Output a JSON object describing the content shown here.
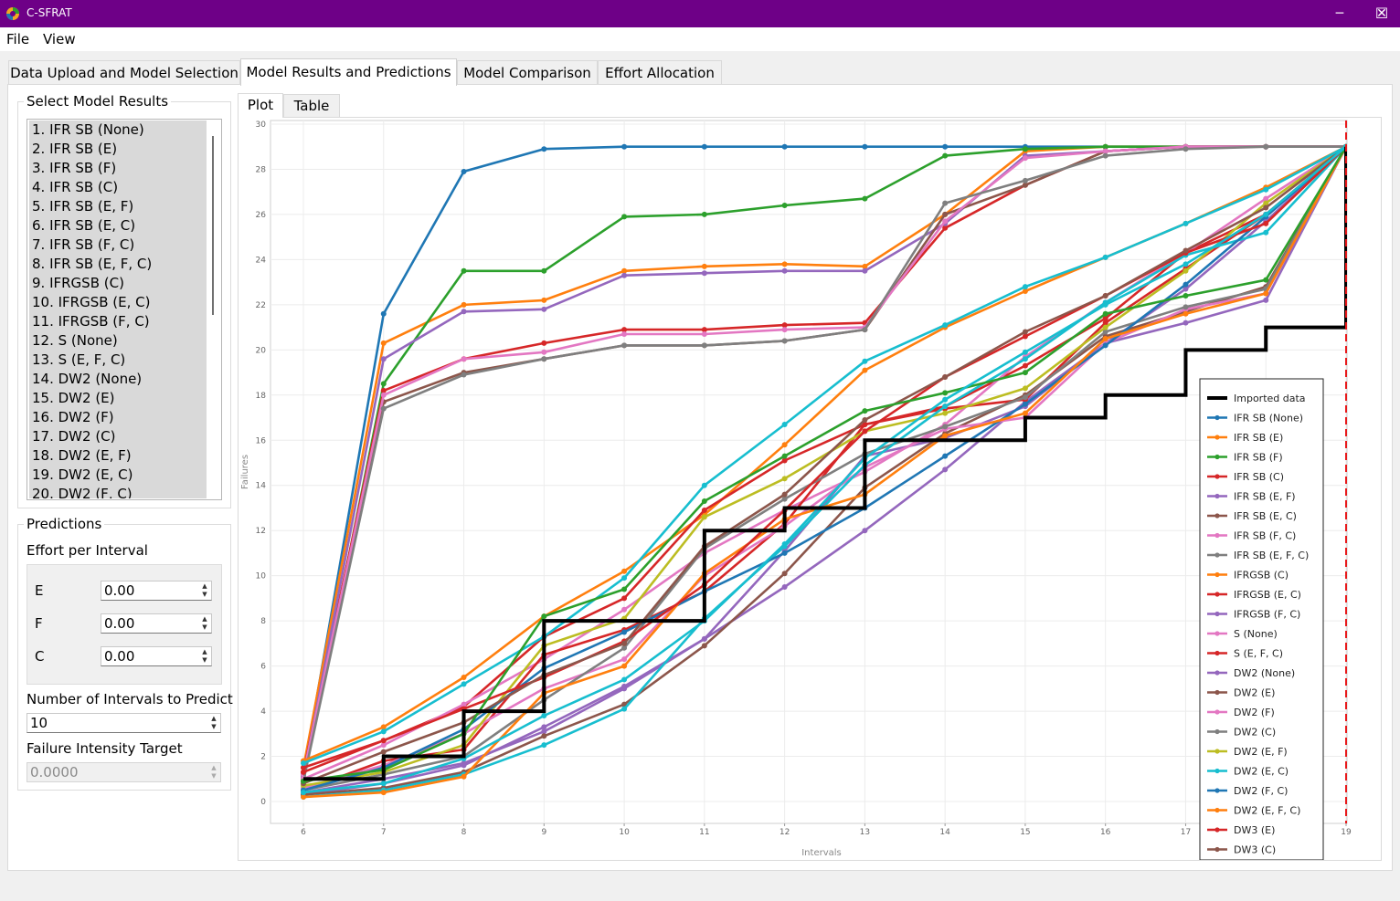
{
  "window": {
    "title": "C-SFRAT",
    "icon": "app-logo-icon",
    "min": "─",
    "max": "☐",
    "close": "✕"
  },
  "menu": [
    "File",
    "View"
  ],
  "tabs": [
    "Data Upload and Model Selection",
    "Model Results and Predictions",
    "Model Comparison",
    "Effort Allocation"
  ],
  "select_model_results": {
    "title": "Select Model Results",
    "items": [
      "1. IFR SB (None)",
      "2. IFR SB (E)",
      "3. IFR SB (F)",
      "4. IFR SB (C)",
      "5. IFR SB (E, F)",
      "6. IFR SB (E, C)",
      "7. IFR SB (F, C)",
      "8. IFR SB (E, F, C)",
      "9. IFRGSB (C)",
      "10. IFRGSB (E, C)",
      "11. IFRGSB (F, C)",
      "12. S (None)",
      "13. S (E, F, C)",
      "14. DW2 (None)",
      "15. DW2 (E)",
      "16. DW2 (F)",
      "17. DW2 (C)",
      "18. DW2 (E, F)",
      "19. DW2 (E, C)",
      "20. DW2 (F, C)"
    ]
  },
  "predictions": {
    "title": "Predictions",
    "effort_label": "Effort per Interval",
    "effort": [
      {
        "label": "E",
        "value": "0.00"
      },
      {
        "label": "F",
        "value": "0.00"
      },
      {
        "label": "C",
        "value": "0.00"
      }
    ],
    "intervals_label": "Number of Intervals to Predict",
    "intervals_value": "10",
    "fi_label": "Failure Intensity Target",
    "fi_value": "0.0000"
  },
  "plot_tabs": [
    "Plot",
    "Table"
  ],
  "chart_data": {
    "type": "line",
    "xlabel": "Intervals",
    "ylabel": "Failures",
    "xlim": [
      6,
      19
    ],
    "ylim": [
      0,
      30
    ],
    "xticks": [
      6,
      7,
      8,
      9,
      10,
      11,
      12,
      13,
      14,
      15,
      16,
      17,
      18,
      19
    ],
    "yticks": [
      0,
      2,
      4,
      6,
      8,
      10,
      12,
      14,
      16,
      18,
      20,
      22,
      24,
      26,
      28,
      30
    ],
    "grid": true,
    "legend_position": "bottom-right",
    "vline": 19,
    "imported": {
      "name": "Imported data",
      "color": "#000000",
      "x": [
        6,
        7,
        8,
        9,
        10,
        11,
        12,
        13,
        14,
        15,
        16,
        17,
        18,
        19
      ],
      "y": [
        1,
        2,
        4,
        8,
        8,
        12,
        13,
        16,
        16,
        17,
        18,
        20,
        21,
        29
      ]
    },
    "series": [
      {
        "name": "IFR SB (None)",
        "color": "#1f77b4",
        "x": [
          6,
          7,
          8,
          9,
          10,
          11,
          12,
          13,
          14,
          15,
          16,
          17,
          18,
          19
        ],
        "y": [
          1.2,
          21.6,
          27.9,
          28.9,
          29,
          29,
          29,
          29,
          29,
          29,
          29,
          29,
          29,
          29
        ]
      },
      {
        "name": "IFR SB (E)",
        "color": "#ff7f0e",
        "x": [
          6,
          7,
          8,
          9,
          10,
          11,
          12,
          13,
          14,
          15,
          16,
          17,
          18,
          19
        ],
        "y": [
          1.5,
          20.3,
          22,
          22.2,
          23.5,
          23.7,
          23.8,
          23.7,
          26,
          28.8,
          29,
          29,
          29,
          29
        ]
      },
      {
        "name": "IFR SB (F)",
        "color": "#2ca02c",
        "x": [
          6,
          7,
          8,
          9,
          10,
          11,
          12,
          13,
          14,
          15,
          16,
          17,
          18,
          19
        ],
        "y": [
          0.9,
          18.5,
          23.5,
          23.5,
          25.9,
          26,
          26.4,
          26.7,
          28.6,
          28.9,
          29,
          29,
          29,
          29
        ]
      },
      {
        "name": "IFR SB (C)",
        "color": "#d62728",
        "x": [
          6,
          7,
          8,
          9,
          10,
          11,
          12,
          13,
          14,
          15,
          16,
          17,
          18,
          19
        ],
        "y": [
          1.3,
          18.2,
          19.6,
          20.3,
          20.9,
          20.9,
          21.1,
          21.2,
          25.4,
          27.3,
          28.8,
          29,
          29,
          29
        ]
      },
      {
        "name": "IFR SB (E, F)",
        "color": "#9467bd",
        "x": [
          6,
          7,
          8,
          9,
          10,
          11,
          12,
          13,
          14,
          15,
          16,
          17,
          18,
          19
        ],
        "y": [
          1.1,
          19.6,
          21.7,
          21.8,
          23.3,
          23.4,
          23.5,
          23.5,
          25.6,
          28.6,
          28.8,
          29,
          29,
          29
        ]
      },
      {
        "name": "IFR SB (E, C)",
        "color": "#8c564b",
        "x": [
          6,
          7,
          8,
          9,
          10,
          11,
          12,
          13,
          14,
          15,
          16,
          17,
          18,
          19
        ],
        "y": [
          1.0,
          17.7,
          19.0,
          19.6,
          20.2,
          20.2,
          20.4,
          20.9,
          26.0,
          27.3,
          28.8,
          29,
          29,
          29
        ]
      },
      {
        "name": "IFR SB (F, C)",
        "color": "#e377c2",
        "x": [
          6,
          7,
          8,
          9,
          10,
          11,
          12,
          13,
          14,
          15,
          16,
          17,
          18,
          19
        ],
        "y": [
          1.2,
          18.0,
          19.6,
          19.9,
          20.7,
          20.7,
          20.9,
          21.0,
          25.7,
          28.5,
          28.8,
          29,
          29,
          29
        ]
      },
      {
        "name": "IFR SB (E, F, C)",
        "color": "#7f7f7f",
        "x": [
          6,
          7,
          8,
          9,
          10,
          11,
          12,
          13,
          14,
          15,
          16,
          17,
          18,
          19
        ],
        "y": [
          0.9,
          17.4,
          18.9,
          19.6,
          20.2,
          20.2,
          20.4,
          20.9,
          26.5,
          27.5,
          28.6,
          28.9,
          29,
          29
        ]
      },
      {
        "name": "IFRGSB (C)",
        "color": "#ff7f0e",
        "x": [
          6,
          7,
          8,
          9,
          10,
          11,
          12,
          13,
          14,
          15,
          16,
          17,
          18,
          19
        ],
        "y": [
          1.8,
          3.3,
          5.5,
          8.2,
          10.2,
          12.7,
          15.8,
          19.1,
          21.0,
          22.6,
          24.1,
          25.6,
          27.2,
          29
        ]
      },
      {
        "name": "IFRGSB (E, C)",
        "color": "#d62728",
        "x": [
          6,
          7,
          8,
          9,
          10,
          11,
          12,
          13,
          14,
          15,
          16,
          17,
          18,
          19
        ],
        "y": [
          1.3,
          2.7,
          4.2,
          7.3,
          9.0,
          12.9,
          15.1,
          16.7,
          17.5,
          19.3,
          21.4,
          24.3,
          26.0,
          29
        ]
      },
      {
        "name": "IFRGSB (F, C)",
        "color": "#9467bd",
        "x": [
          6,
          7,
          8,
          9,
          10,
          11,
          12,
          13,
          14,
          15,
          16,
          17,
          18,
          19
        ],
        "y": [
          0.3,
          0.8,
          1.6,
          3.3,
          5.1,
          7.2,
          9.5,
          12.0,
          14.7,
          17.7,
          20.3,
          21.2,
          22.2,
          29
        ]
      },
      {
        "name": "S (None)",
        "color": "#e377c2",
        "x": [
          6,
          7,
          8,
          9,
          10,
          11,
          12,
          13,
          14,
          15,
          16,
          17,
          18,
          19
        ],
        "y": [
          1.0,
          2.5,
          4.3,
          6.3,
          8.5,
          11.0,
          12.9,
          14.6,
          16.7,
          19.7,
          22.1,
          24.3,
          26.7,
          29
        ]
      },
      {
        "name": "S (E, F, C)",
        "color": "#d62728",
        "x": [
          6,
          7,
          8,
          9,
          10,
          11,
          12,
          13,
          14,
          15,
          16,
          17,
          18,
          19
        ],
        "y": [
          0.5,
          1.8,
          2.3,
          6.5,
          7.6,
          9.3,
          12.3,
          16.7,
          17.4,
          17.8,
          21.2,
          23.6,
          26.0,
          29
        ]
      },
      {
        "name": "DW2 (None)",
        "color": "#9467bd",
        "x": [
          6,
          7,
          8,
          9,
          10,
          11,
          12,
          13,
          14,
          15,
          16,
          17,
          18,
          19
        ],
        "y": [
          0.4,
          1.0,
          1.7,
          3.1,
          5.0,
          7.2,
          11.1,
          15.3,
          16.1,
          17.5,
          20.3,
          22.7,
          25.7,
          29
        ]
      },
      {
        "name": "DW2 (E)",
        "color": "#8c564b",
        "x": [
          6,
          7,
          8,
          9,
          10,
          11,
          12,
          13,
          14,
          15,
          16,
          17,
          18,
          19
        ],
        "y": [
          0.3,
          0.6,
          1.3,
          2.9,
          4.3,
          6.9,
          10.1,
          13.9,
          16.3,
          18.0,
          20.6,
          21.7,
          22.8,
          29
        ]
      },
      {
        "name": "DW2 (F)",
        "color": "#e377c2",
        "x": [
          6,
          7,
          8,
          9,
          10,
          11,
          12,
          13,
          14,
          15,
          16,
          17,
          18,
          19
        ],
        "y": [
          0.6,
          1.6,
          3.0,
          5.0,
          6.3,
          10.0,
          12.2,
          14.8,
          16.5,
          17.0,
          20.3,
          21.8,
          22.5,
          29
        ]
      },
      {
        "name": "DW2 (C)",
        "color": "#7f7f7f",
        "x": [
          6,
          7,
          8,
          9,
          10,
          11,
          12,
          13,
          14,
          15,
          16,
          17,
          18,
          19
        ],
        "y": [
          0.5,
          1.2,
          2.0,
          4.5,
          6.8,
          11.2,
          13.4,
          15.4,
          16.6,
          17.9,
          20.8,
          21.9,
          22.7,
          29
        ]
      },
      {
        "name": "DW2 (E, F)",
        "color": "#bcbd22",
        "x": [
          6,
          7,
          8,
          9,
          10,
          11,
          12,
          13,
          14,
          15,
          16,
          17,
          18,
          19
        ],
        "y": [
          0.7,
          1.3,
          2.5,
          6.9,
          8.1,
          12.6,
          14.3,
          16.4,
          17.2,
          18.3,
          21.0,
          23.5,
          26.5,
          29
        ]
      },
      {
        "name": "DW2 (E, C)",
        "color": "#17becf",
        "x": [
          6,
          7,
          8,
          9,
          10,
          11,
          12,
          13,
          14,
          15,
          16,
          17,
          18,
          19
        ],
        "y": [
          0.2,
          0.5,
          1.2,
          2.5,
          4.1,
          8.1,
          11.3,
          14.9,
          17.5,
          19.6,
          22.1,
          24.2,
          25.2,
          29
        ]
      },
      {
        "name": "DW2 (F, C)",
        "color": "#1f77b4",
        "x": [
          6,
          7,
          8,
          9,
          10,
          11,
          12,
          13,
          14,
          15,
          16,
          17,
          18,
          19
        ],
        "y": [
          0.5,
          1.5,
          3.2,
          5.9,
          7.5,
          9.3,
          11.0,
          13.0,
          15.3,
          17.6,
          20.2,
          22.9,
          25.9,
          29
        ]
      },
      {
        "name": "DW2 (E, F, C)",
        "color": "#ff7f0e",
        "x": [
          6,
          7,
          8,
          9,
          10,
          11,
          12,
          13,
          14,
          15,
          16,
          17,
          18,
          19
        ],
        "y": [
          0.2,
          0.4,
          1.1,
          4.8,
          6.0,
          10.1,
          12.5,
          13.6,
          16.2,
          17.2,
          20.5,
          21.6,
          22.5,
          29
        ]
      },
      {
        "name": "DW3 (E)",
        "color": "#d62728",
        "x": [
          6,
          7,
          8,
          9,
          10,
          11,
          12,
          13,
          14,
          15,
          16,
          17,
          18,
          19
        ],
        "y": [
          1.5,
          2.7,
          4.1,
          5.5,
          7.1,
          9.6,
          12.9,
          16.4,
          18.8,
          20.6,
          22.4,
          24.3,
          25.6,
          29
        ]
      },
      {
        "name": "DW3 (C)",
        "color": "#8c564b",
        "x": [
          6,
          7,
          8,
          9,
          10,
          11,
          12,
          13,
          14,
          15,
          16,
          17,
          18,
          19
        ],
        "y": [
          0.8,
          2.2,
          3.5,
          5.6,
          7.0,
          11.3,
          13.6,
          16.9,
          18.8,
          20.8,
          22.4,
          24.4,
          26.3,
          29
        ]
      },
      {
        "name": "",
        "color": "#17becf",
        "x": [
          6,
          7,
          8,
          9,
          10,
          11,
          12,
          13,
          14,
          15,
          16,
          17,
          18,
          19
        ],
        "y": [
          1.7,
          3.1,
          5.2,
          7.3,
          9.9,
          14.0,
          16.7,
          19.5,
          21.1,
          22.8,
          24.1,
          25.6,
          27.1,
          29
        ]
      },
      {
        "name": "",
        "color": "#2ca02c",
        "x": [
          6,
          7,
          8,
          9,
          10,
          11,
          12,
          13,
          14,
          15,
          16,
          17,
          18,
          19
        ],
        "y": [
          0.9,
          1.4,
          3.0,
          8.2,
          9.4,
          13.3,
          15.3,
          17.3,
          18.1,
          19.0,
          21.6,
          22.4,
          23.1,
          29
        ]
      },
      {
        "name": "",
        "color": "#17becf",
        "x": [
          6,
          7,
          8,
          9,
          10,
          11,
          12,
          13,
          14,
          15,
          16,
          17,
          18,
          19
        ],
        "y": [
          0.4,
          0.8,
          1.9,
          3.8,
          5.4,
          8.0,
          11.4,
          15.2,
          17.8,
          19.9,
          22.0,
          23.8,
          26.0,
          29
        ]
      }
    ]
  }
}
